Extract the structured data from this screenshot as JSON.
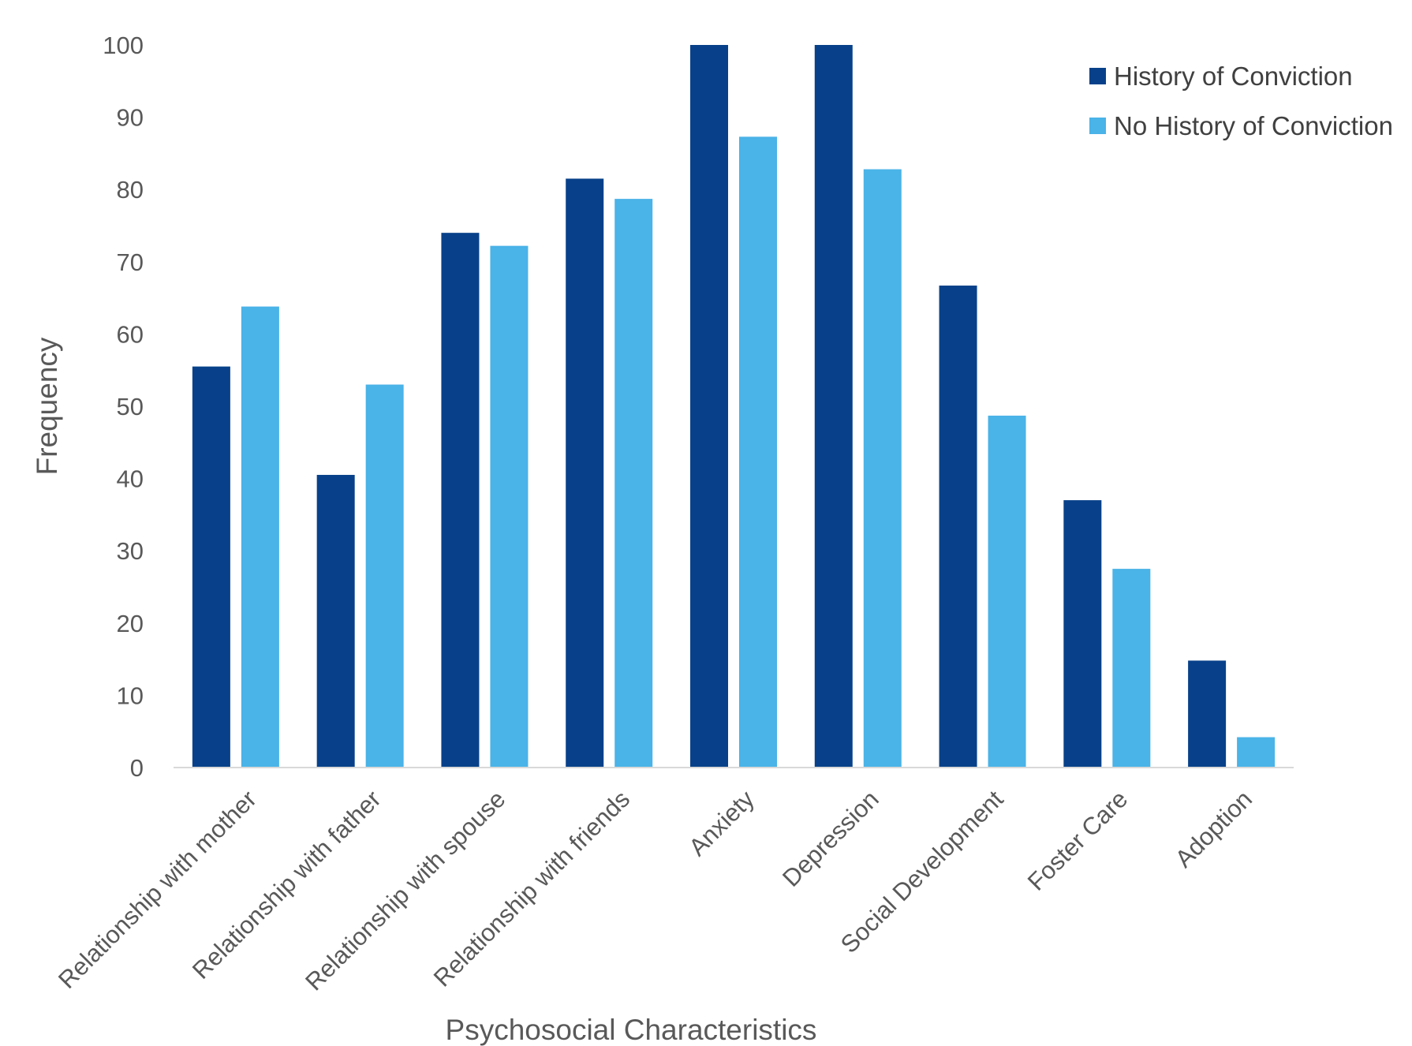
{
  "chart_data": {
    "type": "bar",
    "title": "",
    "xlabel": "Psychosocial Characteristics",
    "ylabel": "Frequency",
    "ylim": [
      0,
      100
    ],
    "yticks": [
      0,
      10,
      20,
      30,
      40,
      50,
      60,
      70,
      80,
      90,
      100
    ],
    "grid": false,
    "legend_position": "top-right",
    "categories": [
      "Relationship with mother",
      "Relationship with father",
      "Relationship with spouse",
      "Relationship with friends",
      "Anxiety",
      "Depression",
      "Social Development",
      "Foster Care",
      "Adoption"
    ],
    "series": [
      {
        "name": "History of Conviction",
        "color": "#08418A",
        "values": [
          55.5,
          40.5,
          74,
          81.5,
          100,
          100,
          66.7,
          37,
          14.8
        ]
      },
      {
        "name": "No History of Conviction",
        "color": "#4AB3E8",
        "values": [
          63.8,
          53,
          72.2,
          78.7,
          87.3,
          82.8,
          48.7,
          27.5,
          4.2
        ]
      }
    ]
  }
}
